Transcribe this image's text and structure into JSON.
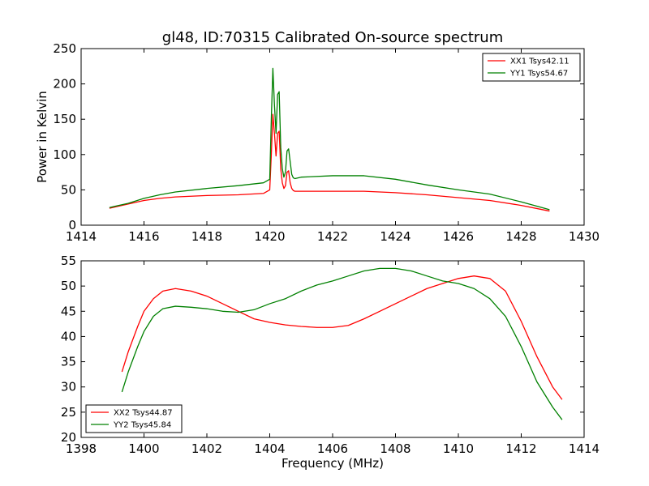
{
  "chart_data": [
    {
      "type": "line",
      "title": "gl48, ID:70315 Calibrated On-source spectrum",
      "xlabel": "",
      "ylabel": "Power in Kelvin",
      "xlim": [
        1414,
        1430
      ],
      "ylim": [
        0,
        250
      ],
      "xticks": [
        "1414",
        "1416",
        "1418",
        "1420",
        "1422",
        "1424",
        "1426",
        "1428",
        "1430"
      ],
      "yticks": [
        "0",
        "50",
        "100",
        "150",
        "200",
        "250"
      ],
      "legend_position": "top-right",
      "series": [
        {
          "name": "XX1 Tsys42.11",
          "color": "#ff0000",
          "x": [
            1414.9,
            1415.5,
            1416.0,
            1416.5,
            1417.0,
            1418.0,
            1419.0,
            1419.8,
            1420.0,
            1420.05,
            1420.1,
            1420.15,
            1420.2,
            1420.25,
            1420.3,
            1420.35,
            1420.4,
            1420.45,
            1420.5,
            1420.55,
            1420.6,
            1420.65,
            1420.7,
            1420.75,
            1420.8,
            1420.9,
            1421.0,
            1422.0,
            1423.0,
            1424.0,
            1425.0,
            1426.0,
            1427.0,
            1428.0,
            1428.9
          ],
          "y": [
            24,
            30,
            35,
            38,
            40,
            42,
            43,
            45,
            50,
            100,
            157,
            130,
            98,
            130,
            133,
            80,
            60,
            52,
            56,
            75,
            77,
            60,
            52,
            49,
            48,
            48,
            48,
            48,
            48,
            46,
            43,
            39,
            35,
            28,
            20
          ]
        },
        {
          "name": "YY1 Tsys54.67",
          "color": "#008000",
          "x": [
            1414.9,
            1415.5,
            1416.0,
            1416.5,
            1417.0,
            1418.0,
            1419.0,
            1419.8,
            1420.0,
            1420.05,
            1420.1,
            1420.15,
            1420.2,
            1420.25,
            1420.3,
            1420.35,
            1420.4,
            1420.45,
            1420.5,
            1420.55,
            1420.6,
            1420.65,
            1420.7,
            1420.75,
            1420.8,
            1420.9,
            1421.0,
            1422.0,
            1423.0,
            1424.0,
            1425.0,
            1426.0,
            1427.0,
            1428.0,
            1428.9
          ],
          "y": [
            25,
            31,
            38,
            43,
            47,
            52,
            56,
            60,
            65,
            150,
            222,
            170,
            130,
            185,
            189,
            110,
            80,
            68,
            75,
            105,
            108,
            90,
            72,
            67,
            66,
            67,
            68,
            70,
            70,
            65,
            57,
            50,
            44,
            33,
            22
          ]
        }
      ]
    },
    {
      "type": "line",
      "title": "",
      "xlabel": "Frequency (MHz)",
      "ylabel": "",
      "xlim": [
        1398,
        1414
      ],
      "ylim": [
        20,
        55
      ],
      "xticks": [
        "1398",
        "1400",
        "1402",
        "1404",
        "1406",
        "1408",
        "1410",
        "1412",
        "1414"
      ],
      "yticks": [
        "20",
        "25",
        "30",
        "35",
        "40",
        "45",
        "50",
        "55"
      ],
      "legend_position": "bottom-left",
      "series": [
        {
          "name": "XX2 Tsys44.87",
          "color": "#ff0000",
          "x": [
            1399.3,
            1399.5,
            1399.8,
            1400.0,
            1400.3,
            1400.6,
            1401.0,
            1401.5,
            1402.0,
            1402.5,
            1403.0,
            1403.5,
            1404.0,
            1404.5,
            1405.0,
            1405.5,
            1406.0,
            1406.5,
            1407.0,
            1407.5,
            1408.0,
            1408.5,
            1409.0,
            1409.5,
            1410.0,
            1410.5,
            1411.0,
            1411.5,
            1412.0,
            1412.5,
            1413.0,
            1413.3
          ],
          "y": [
            33,
            37,
            42,
            45,
            47.5,
            49,
            49.5,
            49,
            48,
            46.5,
            45,
            43.5,
            42.8,
            42.3,
            42,
            41.8,
            41.8,
            42.2,
            43.5,
            45,
            46.5,
            48,
            49.5,
            50.5,
            51.5,
            52,
            51.5,
            49,
            43,
            36,
            30,
            27.5
          ]
        },
        {
          "name": "YY2 Tsys45.84",
          "color": "#008000",
          "x": [
            1399.3,
            1399.5,
            1399.8,
            1400.0,
            1400.3,
            1400.6,
            1401.0,
            1401.5,
            1402.0,
            1402.5,
            1403.0,
            1403.5,
            1404.0,
            1404.5,
            1405.0,
            1405.5,
            1406.0,
            1406.5,
            1407.0,
            1407.5,
            1408.0,
            1408.5,
            1409.0,
            1409.5,
            1410.0,
            1410.5,
            1411.0,
            1411.5,
            1412.0,
            1412.5,
            1413.0,
            1413.3
          ],
          "y": [
            29,
            33,
            38,
            41,
            44,
            45.5,
            46,
            45.8,
            45.5,
            45,
            44.8,
            45.3,
            46.5,
            47.5,
            49,
            50.2,
            51,
            52,
            53,
            53.5,
            53.5,
            53,
            52,
            51,
            50.5,
            49.5,
            47.5,
            44,
            38,
            31,
            26,
            23.5
          ]
        }
      ]
    }
  ]
}
